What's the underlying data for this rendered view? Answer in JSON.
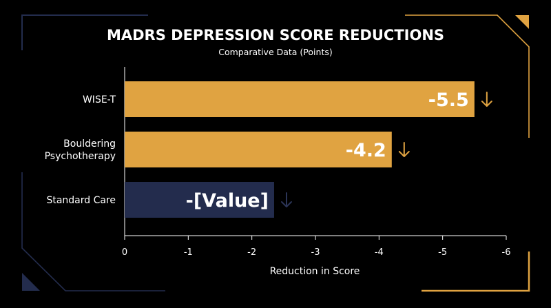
{
  "chart_data": {
    "type": "bar",
    "orientation": "horizontal",
    "title": "MADRS DEPRESSION SCORE REDUCTIONS",
    "subtitle": "Comparative Data (Points)",
    "xlabel": "Reduction in Score",
    "ylabel": "",
    "xlim": [
      0,
      -6
    ],
    "xticks": [
      0,
      -1,
      -2,
      -3,
      -4,
      -5,
      -6
    ],
    "xtick_labels": [
      "0",
      "-1",
      "-2",
      "-3",
      "-4",
      "-5",
      "-6"
    ],
    "grid": false,
    "categories": [
      "WISE-T",
      "Bouldering Psychotherapy",
      "Standard Care"
    ],
    "category_lines": [
      [
        "WISE-T"
      ],
      [
        "Bouldering",
        "Psychotherapy"
      ],
      [
        "Standard Care"
      ]
    ],
    "values": [
      -5.5,
      -4.2,
      -2.35
    ],
    "value_labels": [
      "-5.5",
      "-4.2",
      "-[Value]"
    ],
    "bar_colors": [
      "#e0a341",
      "#e0a341",
      "#232c4d"
    ],
    "arrow_colors": [
      "#e0a341",
      "#e0a341",
      "#2c3558"
    ],
    "arrow_icon": "arrow-down-icon"
  },
  "theme": {
    "background": "#000000",
    "accent": "#e0a341",
    "frame_navy": "#232c4d",
    "axis_color": "#ffffff"
  }
}
